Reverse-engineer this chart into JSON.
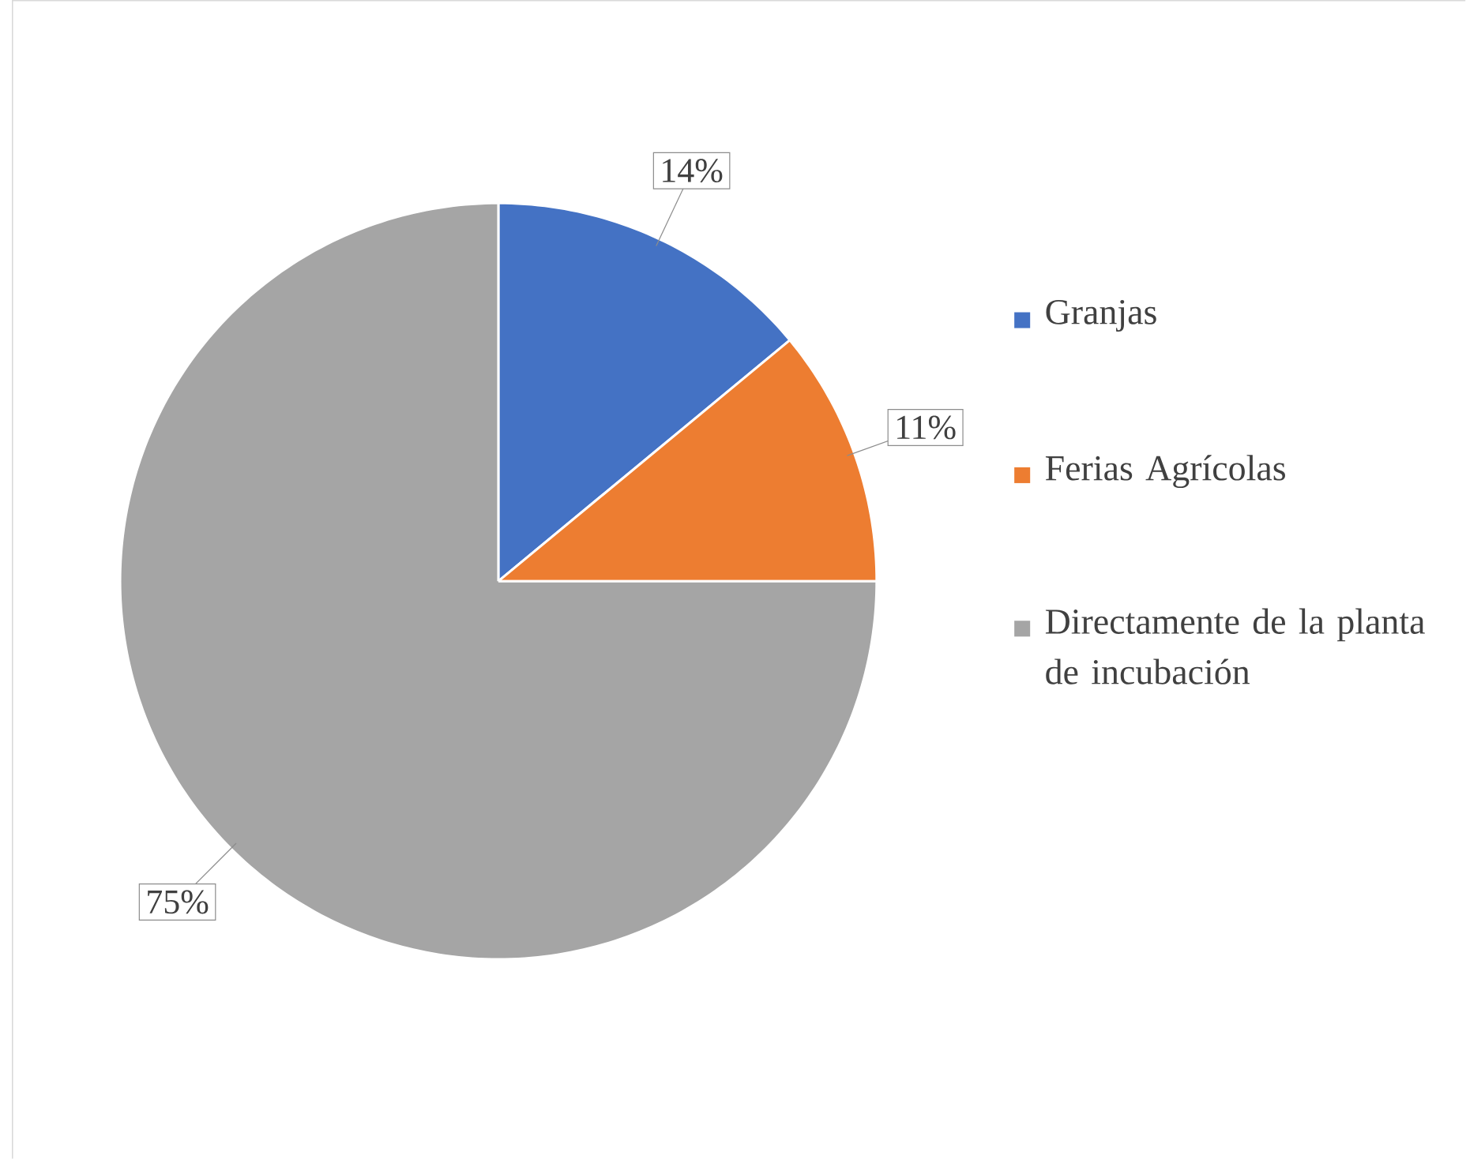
{
  "chart_data": {
    "type": "pie",
    "categories": [
      "Granjas",
      "Ferias Agrícolas",
      "Directamente de la planta de incubación"
    ],
    "values": [
      14,
      11,
      75
    ],
    "colors": [
      "#4472c4",
      "#ed7d31",
      "#a5a5a5"
    ],
    "value_labels": [
      "14%",
      "11%",
      "75%"
    ],
    "legend": "right"
  }
}
